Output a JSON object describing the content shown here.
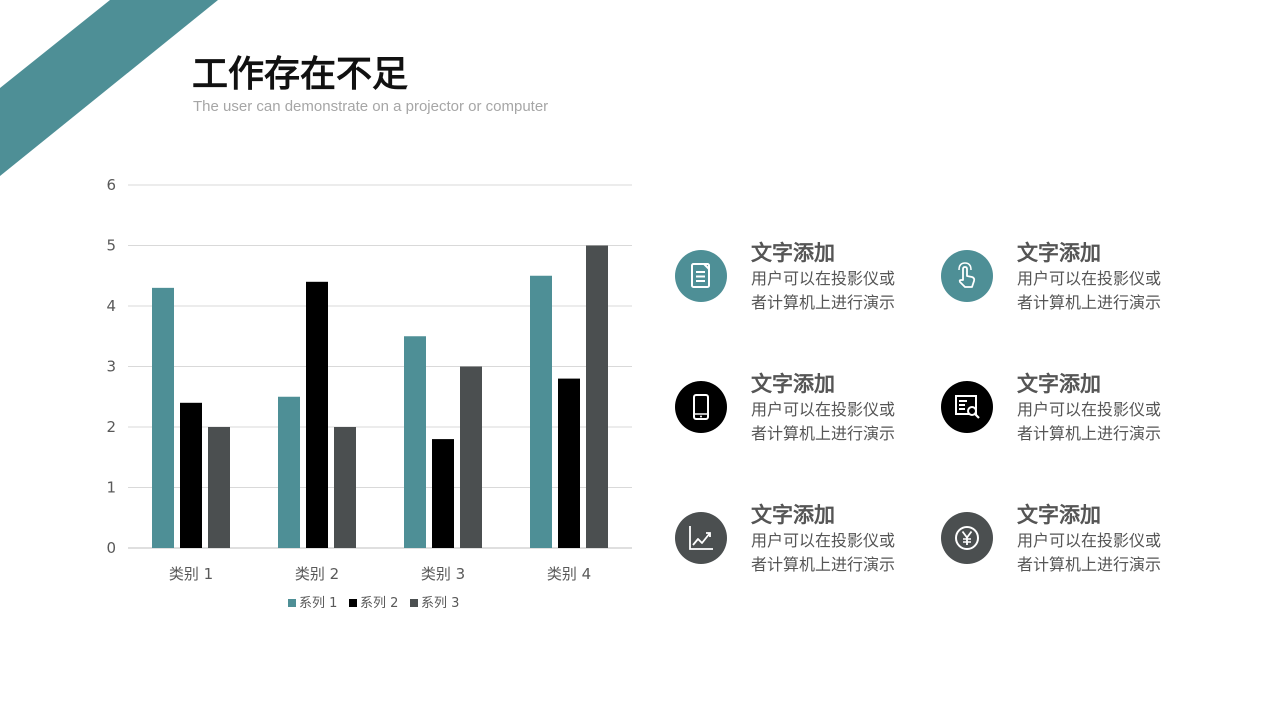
{
  "header": {
    "title": "工作存在不足",
    "subtitle": "The user can demonstrate on a projector or computer"
  },
  "colors": {
    "accent": "#4e8f96",
    "series1": "#4e8f96",
    "series2": "#000000",
    "series3": "#4b4f50",
    "dark_circle": "#000000",
    "gray_circle": "#4b4f50"
  },
  "chart_data": {
    "type": "bar",
    "categories": [
      "类别 1",
      "类别 2",
      "类别 3",
      "类别 4"
    ],
    "series": [
      {
        "name": "系列 1",
        "values": [
          4.3,
          2.5,
          3.5,
          4.5
        ]
      },
      {
        "name": "系列 2",
        "values": [
          2.4,
          4.4,
          1.8,
          2.8
        ]
      },
      {
        "name": "系列 3",
        "values": [
          2,
          2,
          3,
          5
        ]
      }
    ],
    "title": "",
    "xlabel": "",
    "ylabel": "",
    "ylim": [
      0,
      6
    ],
    "yticks": [
      "0",
      "1",
      "2",
      "3",
      "4",
      "5",
      "6"
    ],
    "grid": true,
    "legend": "bottom"
  },
  "features": [
    {
      "title": "文字添加",
      "line1": "用户可以在投影仪或",
      "line2": "者计算机上进行演示",
      "icon": "document-icon",
      "color": "#4e8f96"
    },
    {
      "title": "文字添加",
      "line1": "用户可以在投影仪或",
      "line2": "者计算机上进行演示",
      "icon": "touch-hand-icon",
      "color": "#4e8f96"
    },
    {
      "title": "文字添加",
      "line1": "用户可以在投影仪或",
      "line2": "者计算机上进行演示",
      "icon": "phone-icon",
      "color": "#000000"
    },
    {
      "title": "文字添加",
      "line1": "用户可以在投影仪或",
      "line2": "者计算机上进行演示",
      "icon": "search-report-icon",
      "color": "#000000"
    },
    {
      "title": "文字添加",
      "line1": "用户可以在投影仪或",
      "line2": "者计算机上进行演示",
      "icon": "line-chart-icon",
      "color": "#4b4f50"
    },
    {
      "title": "文字添加",
      "line1": "用户可以在投影仪或",
      "line2": "者计算机上进行演示",
      "icon": "yen-icon",
      "color": "#4b4f50"
    }
  ]
}
